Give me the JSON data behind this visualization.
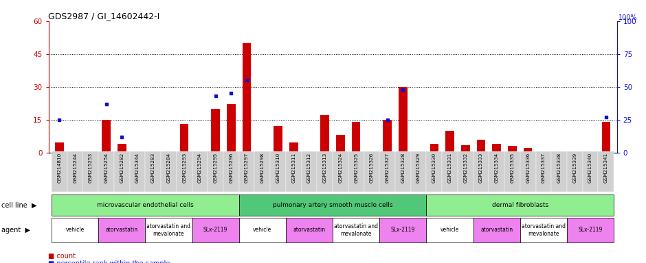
{
  "title": "GDS2987 / GI_14602442-I",
  "samples": [
    "GSM214810",
    "GSM215244",
    "GSM215253",
    "GSM215254",
    "GSM215282",
    "GSM215344",
    "GSM215283",
    "GSM215284",
    "GSM215293",
    "GSM215294",
    "GSM215295",
    "GSM215296",
    "GSM215297",
    "GSM215298",
    "GSM215310",
    "GSM215311",
    "GSM215312",
    "GSM215313",
    "GSM215324",
    "GSM215325",
    "GSM215326",
    "GSM215327",
    "GSM215328",
    "GSM215329",
    "GSM215330",
    "GSM215331",
    "GSM215332",
    "GSM215333",
    "GSM215334",
    "GSM215335",
    "GSM215336",
    "GSM215337",
    "GSM215338",
    "GSM215339",
    "GSM215340",
    "GSM215341"
  ],
  "count": [
    4.5,
    0,
    0,
    15,
    4,
    0,
    0,
    0,
    13,
    0,
    20,
    22,
    50,
    0.5,
    12,
    4.5,
    0,
    17,
    8,
    14,
    0,
    15,
    30,
    0,
    4,
    10,
    3.5,
    6,
    4,
    3,
    2,
    0,
    0,
    0,
    0,
    14
  ],
  "percentile": [
    25,
    0,
    0,
    37,
    12,
    0,
    0,
    0,
    0,
    0,
    43,
    45,
    55,
    0,
    0,
    0,
    0,
    0,
    0,
    0,
    0,
    25,
    48,
    0,
    0,
    0,
    0,
    0,
    0,
    0,
    0,
    0,
    0,
    0,
    0,
    27
  ],
  "ylim_left": [
    0,
    60
  ],
  "ylim_right": [
    0,
    100
  ],
  "yticks_left": [
    0,
    15,
    30,
    45,
    60
  ],
  "yticks_right": [
    0,
    25,
    50,
    75,
    100
  ],
  "cell_line_groups": [
    {
      "label": "microvascular endothelial cells",
      "start": 0,
      "end": 12,
      "color": "#90EE90"
    },
    {
      "label": "pulmonary artery smooth muscle cells",
      "start": 12,
      "end": 24,
      "color": "#50C878"
    },
    {
      "label": "dermal fibroblasts",
      "start": 24,
      "end": 36,
      "color": "#90EE90"
    }
  ],
  "agent_groups": [
    {
      "label": "vehicle",
      "start": 0,
      "end": 3,
      "color": "#ffffff"
    },
    {
      "label": "atorvastatin",
      "start": 3,
      "end": 6,
      "color": "#ee82ee"
    },
    {
      "label": "atorvastatin and\nmevalonate",
      "start": 6,
      "end": 9,
      "color": "#ffffff"
    },
    {
      "label": "SLx-2119",
      "start": 9,
      "end": 12,
      "color": "#ee82ee"
    },
    {
      "label": "vehicle",
      "start": 12,
      "end": 15,
      "color": "#ffffff"
    },
    {
      "label": "atorvastatin",
      "start": 15,
      "end": 18,
      "color": "#ee82ee"
    },
    {
      "label": "atorvastatin and\nmevalonate",
      "start": 18,
      "end": 21,
      "color": "#ffffff"
    },
    {
      "label": "SLx-2119",
      "start": 21,
      "end": 24,
      "color": "#ee82ee"
    },
    {
      "label": "vehicle",
      "start": 24,
      "end": 27,
      "color": "#ffffff"
    },
    {
      "label": "atorvastatin",
      "start": 27,
      "end": 30,
      "color": "#ee82ee"
    },
    {
      "label": "atorvastatin and\nmevalonate",
      "start": 30,
      "end": 33,
      "color": "#ffffff"
    },
    {
      "label": "SLx-2119",
      "start": 33,
      "end": 36,
      "color": "#ee82ee"
    }
  ],
  "bar_color": "#cc0000",
  "dot_color": "#1111cc",
  "background_color": "#ffffff",
  "left_axis_color": "#cc0000",
  "right_axis_color": "#1111cc",
  "title_fontsize": 9,
  "sample_tick_bg": "#d0d0d0",
  "cell_line_label_color": "#006600",
  "agent_label_color": "#006600"
}
